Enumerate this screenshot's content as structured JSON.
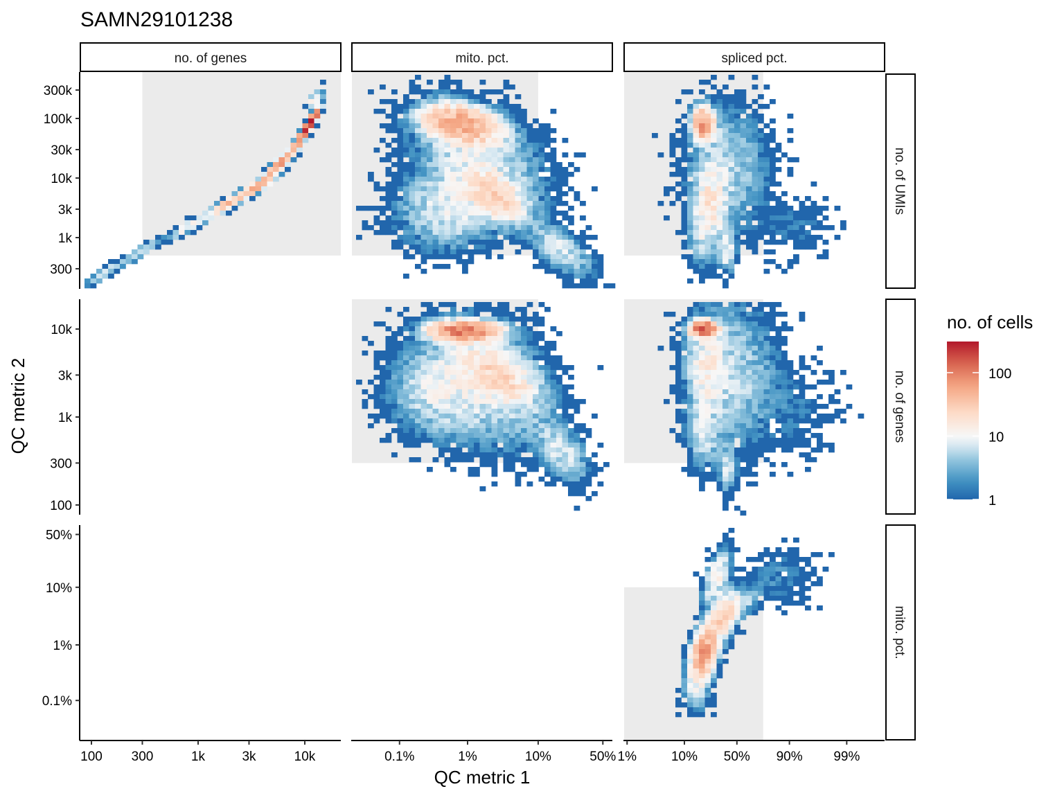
{
  "chart_data": {
    "type": "heatmap",
    "title": "SAMN29101238",
    "xlabel": "QC metric 1",
    "ylabel": "QC metric 2",
    "legend": {
      "title": "no. of cells",
      "scale": "log10",
      "range": [
        1,
        310
      ],
      "ticks": [
        {
          "value": 1,
          "label": "1"
        },
        {
          "value": 10,
          "label": "10"
        },
        {
          "value": 100,
          "label": "100"
        }
      ],
      "colors": [
        "#2166ac",
        "#4393c3",
        "#92c5de",
        "#d1e5f0",
        "#f7f7f7",
        "#fddbc7",
        "#f4a582",
        "#d6604d",
        "#b2182b"
      ],
      "placement": "right"
    },
    "columns": [
      {
        "strip": "no. of genes",
        "scale": "log10",
        "ticks": [
          {
            "value": 100,
            "label": "100"
          },
          {
            "value": 300,
            "label": "300"
          },
          {
            "value": 1000,
            "label": "1k"
          },
          {
            "value": 3000,
            "label": "3k"
          },
          {
            "value": 10000,
            "label": "10k"
          }
        ]
      },
      {
        "strip": "mito. pct.",
        "scale": "logit",
        "ticks": [
          {
            "value": 0.1,
            "label": "0.1%"
          },
          {
            "value": 1,
            "label": "1%"
          },
          {
            "value": 10,
            "label": "10%"
          },
          {
            "value": 50,
            "label": "50%"
          }
        ]
      },
      {
        "strip": "spliced pct.",
        "scale": "logit",
        "ticks": [
          {
            "value": 1,
            "label": "1%"
          },
          {
            "value": 10,
            "label": "10%"
          },
          {
            "value": 50,
            "label": "50%"
          },
          {
            "value": 90,
            "label": "90%"
          },
          {
            "value": 99,
            "label": "99%"
          }
        ]
      }
    ],
    "rows": [
      {
        "strip": "no. of UMIs",
        "scale": "log10",
        "ticks": [
          {
            "value": 300000,
            "label": "300k"
          },
          {
            "value": 100000,
            "label": "100k"
          },
          {
            "value": 30000,
            "label": "30k"
          },
          {
            "value": 10000,
            "label": "10k"
          },
          {
            "value": 3000,
            "label": "3k"
          },
          {
            "value": 1000,
            "label": "1k"
          },
          {
            "value": 300,
            "label": "300"
          }
        ]
      },
      {
        "strip": "no. of genes",
        "scale": "log10",
        "ticks": [
          {
            "value": 10000,
            "label": "10k"
          },
          {
            "value": 3000,
            "label": "3k"
          },
          {
            "value": 1000,
            "label": "1k"
          },
          {
            "value": 300,
            "label": "300"
          },
          {
            "value": 100,
            "label": "100"
          }
        ]
      },
      {
        "strip": "mito. pct.",
        "scale": "logit",
        "ticks": [
          {
            "value": 50,
            "label": "50%"
          },
          {
            "value": 10,
            "label": "10%"
          },
          {
            "value": 1,
            "label": "1%"
          },
          {
            "value": 0.1,
            "label": "0.1%"
          }
        ]
      }
    ],
    "gate_color": "#ebebeb",
    "panels": [
      {
        "col": 0,
        "row": 0,
        "gate": {
          "x_min": 300,
          "y_min": 500
        },
        "density_peaks": [
          {
            "x": 130,
            "y": 250,
            "peak": 8,
            "sx": 0.1,
            "sy": 0.12,
            "rho": 0.9
          },
          {
            "x": 300,
            "y": 600,
            "peak": 10,
            "sx": 0.1,
            "sy": 0.12,
            "rho": 0.9
          },
          {
            "x": 800,
            "y": 1500,
            "peak": 14,
            "sx": 0.1,
            "sy": 0.12,
            "rho": 0.9
          },
          {
            "x": 1800,
            "y": 3500,
            "peak": 40,
            "sx": 0.1,
            "sy": 0.12,
            "rho": 0.9
          },
          {
            "x": 3500,
            "y": 7000,
            "peak": 60,
            "sx": 0.1,
            "sy": 0.12,
            "rho": 0.9
          },
          {
            "x": 6000,
            "y": 18000,
            "peak": 70,
            "sx": 0.08,
            "sy": 0.14,
            "rho": 0.9
          },
          {
            "x": 9500,
            "y": 50000,
            "peak": 150,
            "sx": 0.05,
            "sy": 0.12,
            "rho": 0.9
          },
          {
            "x": 11500,
            "y": 90000,
            "peak": 350,
            "sx": 0.04,
            "sy": 0.1,
            "rho": 0.9
          },
          {
            "x": 12500,
            "y": 200000,
            "peak": 15,
            "sx": 0.04,
            "sy": 0.1,
            "rho": 0.5
          }
        ]
      },
      {
        "col": 1,
        "row": 0,
        "gate": {
          "x_max": 10,
          "y_min": 500
        },
        "density_peaks": [
          {
            "x": 0.8,
            "y": 80000,
            "peak": 60,
            "sx": 0.7,
            "sy": 0.18,
            "rho": -0.3
          },
          {
            "x": 2.5,
            "y": 5000,
            "peak": 25,
            "sx": 0.6,
            "sy": 0.25,
            "rho": -0.5
          },
          {
            "x": 0.5,
            "y": 3000,
            "peak": 8,
            "sx": 1.0,
            "sy": 0.4,
            "rho": 0
          },
          {
            "x": 20,
            "y": 600,
            "peak": 8,
            "sx": 0.6,
            "sy": 0.25,
            "rho": -0.6
          },
          {
            "x": 1.5,
            "y": 20000,
            "peak": 8,
            "sx": 1.3,
            "sy": 0.55,
            "rho": -0.4
          }
        ]
      },
      {
        "col": 2,
        "row": 0,
        "gate": {
          "x_max": 75,
          "y_min": 500
        },
        "density_peaks": [
          {
            "x": 20,
            "y": 80000,
            "peak": 80,
            "sx": 0.25,
            "sy": 0.15,
            "rho": 0
          },
          {
            "x": 25,
            "y": 4000,
            "peak": 15,
            "sx": 0.4,
            "sy": 0.35,
            "rho": 0
          },
          {
            "x": 40,
            "y": 600,
            "peak": 10,
            "sx": 0.2,
            "sy": 0.2,
            "rho": 0
          },
          {
            "x": 20,
            "y": 1000,
            "peak": 6,
            "sx": 0.4,
            "sy": 0.3,
            "rho": 0
          },
          {
            "x": 40,
            "y": 15000,
            "peak": 6,
            "sx": 1.0,
            "sy": 0.6,
            "rho": 0
          },
          {
            "x": 92,
            "y": 1500,
            "peak": 1.5,
            "sx": 1.0,
            "sy": 0.3,
            "rho": 0
          }
        ]
      },
      {
        "col": 1,
        "row": 1,
        "gate": {
          "x_max": 10,
          "y_min": 300
        },
        "density_peaks": [
          {
            "x": 0.9,
            "y": 9500,
            "peak": 120,
            "sx": 0.6,
            "sy": 0.06,
            "rho": 0
          },
          {
            "x": 3,
            "y": 3000,
            "peak": 20,
            "sx": 0.7,
            "sy": 0.2,
            "rho": -0.5
          },
          {
            "x": 0.4,
            "y": 2000,
            "peak": 8,
            "sx": 1.0,
            "sy": 0.3,
            "rho": 0
          },
          {
            "x": 20,
            "y": 400,
            "peak": 8,
            "sx": 0.5,
            "sy": 0.2,
            "rho": -0.5
          },
          {
            "x": 2,
            "y": 2500,
            "peak": 7,
            "sx": 1.3,
            "sy": 0.45,
            "rho": -0.3
          }
        ]
      },
      {
        "col": 2,
        "row": 1,
        "gate": {
          "x_max": 75,
          "y_min": 300
        },
        "density_peaks": [
          {
            "x": 20,
            "y": 10000,
            "peak": 150,
            "sx": 0.3,
            "sy": 0.05,
            "rho": 0
          },
          {
            "x": 22,
            "y": 3500,
            "peak": 12,
            "sx": 0.45,
            "sy": 0.3,
            "rho": 0
          },
          {
            "x": 40,
            "y": 250,
            "peak": 8,
            "sx": 0.2,
            "sy": 0.15,
            "rho": 0
          },
          {
            "x": 20,
            "y": 600,
            "peak": 6,
            "sx": 0.4,
            "sy": 0.2,
            "rho": 0
          },
          {
            "x": 45,
            "y": 3000,
            "peak": 6,
            "sx": 1.1,
            "sy": 0.5,
            "rho": 0
          },
          {
            "x": 93,
            "y": 1200,
            "peak": 1.5,
            "sx": 1.0,
            "sy": 0.3,
            "rho": 0
          }
        ]
      },
      {
        "col": 2,
        "row": 2,
        "gate": {
          "x_max": 75,
          "y_max": 10
        },
        "density_peaks": [
          {
            "x": 20,
            "y": 0.7,
            "peak": 70,
            "sx": 0.3,
            "sy": 0.6,
            "rho": 0.3
          },
          {
            "x": 35,
            "y": 3,
            "peak": 25,
            "sx": 0.35,
            "sy": 0.6,
            "rho": 0.4
          },
          {
            "x": 30,
            "y": 15,
            "peak": 15,
            "sx": 0.3,
            "sy": 0.6,
            "rho": 0.5
          },
          {
            "x": 50,
            "y": 5,
            "peak": 10,
            "sx": 0.5,
            "sy": 0.4,
            "rho": 0.6
          },
          {
            "x": 15,
            "y": 0.15,
            "peak": 8,
            "sx": 0.3,
            "sy": 0.5,
            "rho": 0
          },
          {
            "x": 85,
            "y": 15,
            "peak": 2,
            "sx": 0.9,
            "sy": 0.7,
            "rho": 0
          }
        ]
      }
    ]
  }
}
